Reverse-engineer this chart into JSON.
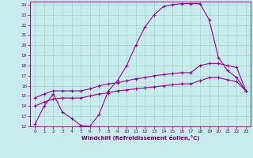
{
  "xlabel": "Windchill (Refroidissement éolien,°C)",
  "bg_color": "#c8ecec",
  "grid_color": "#a0d0d0",
  "line_color": "#990099",
  "xlim": [
    -0.5,
    23.5
  ],
  "ylim": [
    12,
    24.3
  ],
  "xticks": [
    0,
    1,
    2,
    3,
    4,
    5,
    6,
    7,
    8,
    9,
    10,
    11,
    12,
    13,
    14,
    15,
    16,
    17,
    18,
    19,
    20,
    21,
    22,
    23
  ],
  "yticks": [
    12,
    13,
    14,
    15,
    16,
    17,
    18,
    19,
    20,
    21,
    22,
    23,
    24
  ],
  "curve1_x": [
    0,
    1,
    2,
    3,
    4,
    5,
    6,
    7,
    8,
    9,
    10,
    11,
    12,
    13,
    14,
    15,
    16,
    17,
    18,
    19,
    20,
    21,
    22,
    23
  ],
  "curve1_y": [
    12.2,
    14.0,
    15.2,
    13.4,
    12.8,
    12.1,
    12.0,
    13.2,
    15.5,
    16.5,
    18.0,
    20.0,
    21.8,
    23.0,
    23.8,
    24.0,
    24.1,
    24.1,
    24.1,
    22.5,
    18.8,
    17.5,
    16.8,
    15.5
  ],
  "curve2_x": [
    0,
    1,
    2,
    3,
    4,
    5,
    6,
    7,
    8,
    9,
    10,
    11,
    12,
    13,
    14,
    15,
    16,
    17,
    18,
    19,
    20,
    21,
    22,
    23
  ],
  "curve2_y": [
    14.8,
    15.2,
    15.5,
    15.5,
    15.5,
    15.5,
    15.7,
    16.0,
    16.2,
    16.3,
    16.5,
    16.7,
    16.8,
    17.0,
    17.1,
    17.2,
    17.3,
    17.3,
    18.0,
    18.2,
    18.2,
    18.0,
    17.8,
    15.5
  ],
  "curve3_x": [
    0,
    1,
    2,
    3,
    4,
    5,
    6,
    7,
    8,
    9,
    10,
    11,
    12,
    13,
    14,
    15,
    16,
    17,
    18,
    19,
    20,
    21,
    22,
    23
  ],
  "curve3_y": [
    14.0,
    14.4,
    14.7,
    14.8,
    14.8,
    14.8,
    15.0,
    15.2,
    15.3,
    15.5,
    15.6,
    15.7,
    15.8,
    15.9,
    16.0,
    16.1,
    16.2,
    16.2,
    16.5,
    16.8,
    16.8,
    16.6,
    16.4,
    15.5
  ]
}
